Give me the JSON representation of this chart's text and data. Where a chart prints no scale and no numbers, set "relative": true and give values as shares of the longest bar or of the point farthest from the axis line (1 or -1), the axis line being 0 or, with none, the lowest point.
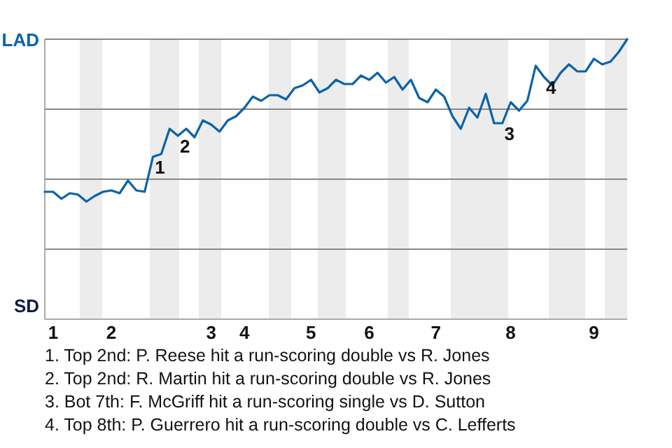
{
  "chart_data": {
    "type": "line",
    "relative": true,
    "categories": [
      null,
      "1",
      null,
      null,
      null,
      null,
      null,
      null,
      "2",
      null,
      null,
      null,
      null,
      null,
      null,
      null,
      null,
      null,
      null,
      null,
      "3",
      null,
      null,
      null,
      "4",
      null,
      null,
      null,
      null,
      null,
      null,
      null,
      "5",
      null,
      null,
      null,
      null,
      null,
      null,
      "6",
      null,
      null,
      null,
      null,
      null,
      null,
      null,
      "7",
      null,
      null,
      null,
      null,
      null,
      null,
      null,
      null,
      "8",
      null,
      null,
      null,
      null,
      null,
      null,
      null,
      null,
      null,
      "9",
      null,
      null,
      null,
      null
    ],
    "series": [
      {
        "color": "#0b62a8",
        "values": [
          0.455,
          0.455,
          0.43,
          0.45,
          0.445,
          0.42,
          0.44,
          0.455,
          0.46,
          0.45,
          0.495,
          0.46,
          0.455,
          0.58,
          0.59,
          0.68,
          0.655,
          0.68,
          0.65,
          0.71,
          0.695,
          0.67,
          0.71,
          0.725,
          0.755,
          0.795,
          0.78,
          0.8,
          0.8,
          0.785,
          0.825,
          0.835,
          0.855,
          0.81,
          0.825,
          0.855,
          0.84,
          0.84,
          0.87,
          0.855,
          0.88,
          0.845,
          0.865,
          0.82,
          0.855,
          0.79,
          0.775,
          0.82,
          0.795,
          0.725,
          0.68,
          0.755,
          0.72,
          0.805,
          0.7,
          0.7,
          0.775,
          0.745,
          0.78,
          0.905,
          0.865,
          0.835,
          0.88,
          0.91,
          0.885,
          0.885,
          0.93,
          0.91,
          0.92,
          0.955,
          1
        ]
      }
    ],
    "grid": "y",
    "line_style": "solid",
    "annotations": [
      "LAD",
      "SD",
      {
        "text": "1",
        "y": 0.58
      },
      {
        "text": "2",
        "y": 0.655
      },
      {
        "text": "3",
        "y": 0.7
      },
      {
        "text": "4",
        "y": 0.865
      },
      "1. Top 2nd: P. Reese hit a run-scoring double vs R. Jones",
      "2. Top 2nd: R. Martin hit a run-scoring double vs R. Jones",
      "3. Bot 7th: F. McGriff hit a run-scoring single vs D. Sutton",
      "4. Top 8th: P. Guerrero hit a run-scoring double vs C. Lefferts"
    ]
  }
}
